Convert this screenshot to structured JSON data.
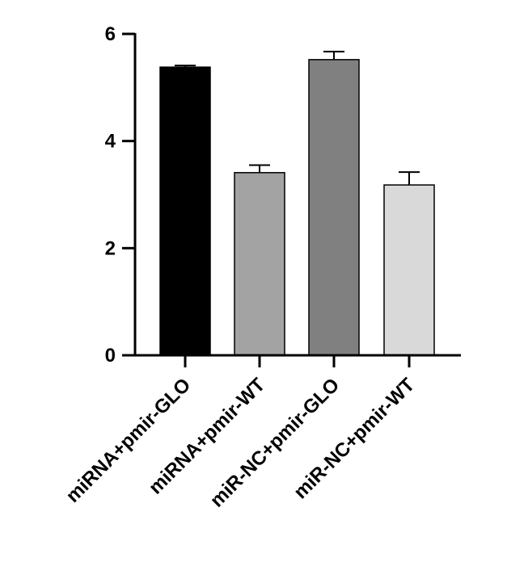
{
  "chart_data": {
    "type": "bar",
    "title": "",
    "xlabel": "",
    "ylabel": "",
    "ylim": [
      0,
      6
    ],
    "yticks": [
      0,
      2,
      4,
      6
    ],
    "grid": false,
    "legend": "none",
    "categories": [
      "miRNA+pmir-GLO",
      "miRNA+pmir-WT",
      "miR-NC+pmir-GLO",
      "miR-NC+pmir-WT"
    ],
    "values": [
      5.38,
      3.41,
      5.52,
      3.18
    ],
    "errors": [
      0.03,
      0.14,
      0.15,
      0.24
    ],
    "colors": [
      "#000000",
      "#a3a3a3",
      "#808080",
      "#d9d9d9"
    ]
  }
}
